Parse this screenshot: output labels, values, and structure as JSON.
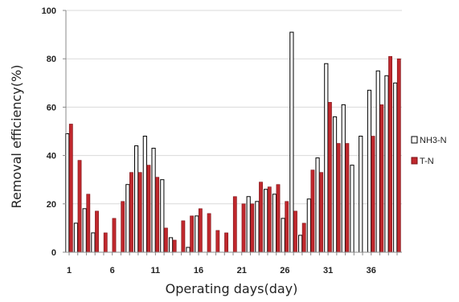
{
  "chart_data": {
    "type": "bar",
    "xlabel": "Operating days(day)",
    "ylabel": "Removal efficiency(%)",
    "ylim": [
      0,
      100
    ],
    "yticks": [
      0,
      20,
      40,
      60,
      80,
      100
    ],
    "xticks": [
      1,
      6,
      11,
      16,
      21,
      26,
      31,
      36
    ],
    "x": [
      1,
      2,
      3,
      4,
      5,
      6,
      7,
      8,
      9,
      10,
      11,
      12,
      13,
      14,
      15,
      16,
      17,
      18,
      19,
      20,
      21,
      22,
      23,
      24,
      25,
      26,
      27,
      28,
      29,
      30,
      31,
      32,
      33,
      34,
      35,
      36,
      37,
      38,
      39
    ],
    "legend_position": "right",
    "series": [
      {
        "name": "NH3-N",
        "color": "#ffffff",
        "stroke": "#000000",
        "values": [
          49,
          12,
          18,
          8,
          null,
          null,
          null,
          28,
          44,
          48,
          43,
          30,
          6,
          null,
          2,
          15,
          null,
          null,
          null,
          null,
          null,
          23,
          21,
          26,
          24,
          14,
          91,
          7,
          22,
          39,
          78,
          56,
          61,
          36,
          48,
          67,
          75,
          73,
          70
        ]
      },
      {
        "name": "T-N",
        "color": "#c0282d",
        "stroke": "#7a1015",
        "values": [
          53,
          38,
          24,
          17,
          8,
          14,
          21,
          33,
          33,
          36,
          31,
          10,
          5,
          13,
          15,
          18,
          16,
          9,
          8,
          23,
          20,
          20,
          29,
          27,
          28,
          21,
          17,
          12,
          34,
          33,
          62,
          45,
          45,
          null,
          null,
          48,
          61,
          81,
          80
        ]
      }
    ]
  }
}
